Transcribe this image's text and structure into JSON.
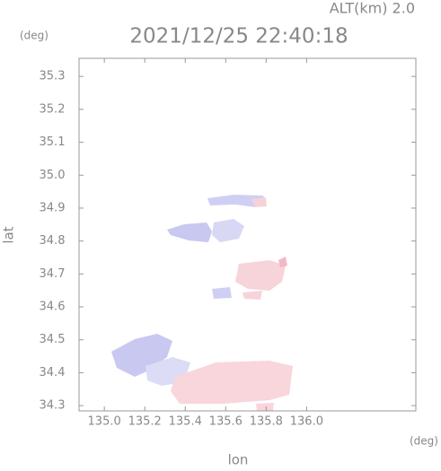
{
  "chart_data": {
    "type": "map",
    "title": "2021/12/25 22:40:18",
    "subtitle": "ALT(km) 2.0",
    "x_label": "lon",
    "y_label": "lat",
    "x_unit": "(deg)",
    "y_unit": "(deg)",
    "xlim": [
      134.875,
      136.54
    ],
    "ylim": [
      34.284,
      35.355
    ],
    "xticks": [
      {
        "value": 135,
        "label": "135.0"
      },
      135.2,
      135.4,
      135.6,
      135.8,
      {
        "value": 136,
        "label": "136.0"
      }
    ],
    "yticks": [
      34.3,
      34.4,
      34.5,
      34.6,
      34.7,
      34.8,
      34.9,
      {
        "value": 35,
        "label": "35.0"
      },
      35.1,
      35.2,
      35.3
    ]
  }
}
